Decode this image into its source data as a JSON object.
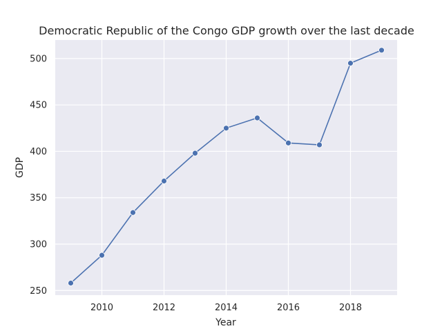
{
  "chart_data": {
    "type": "line",
    "title": "Democratic Republic of the Congo GDP growth over the last decade",
    "xlabel": "Year",
    "ylabel": "GDP",
    "x": [
      2009,
      2010,
      2011,
      2012,
      2013,
      2014,
      2015,
      2016,
      2017,
      2018,
      2019
    ],
    "series": [
      {
        "values": [
          258,
          288,
          334,
          368,
          398,
          425,
          436,
          409,
          407,
          495,
          509
        ]
      }
    ],
    "xticks": [
      "2010",
      "2012",
      "2014",
      "2016",
      "2018"
    ],
    "yticks": [
      "250",
      "300",
      "350",
      "400",
      "450",
      "500"
    ],
    "xlim": [
      2008.5,
      2019.5
    ],
    "ylim": [
      245,
      520
    ],
    "grid": true,
    "legend": "none",
    "colors": {
      "line": "#4c72b0",
      "background": "#eaeaf2",
      "grid": "#ffffff"
    }
  }
}
